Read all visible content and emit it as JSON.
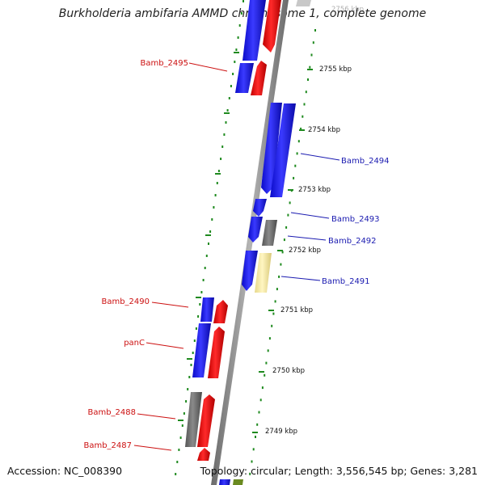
{
  "title": "Burkholderia ambifaria AMMD chromosome 1, complete genome",
  "footer": {
    "accession": "Accession: NC_008390",
    "summary": "Topology: circular; Length: 3,556,545 bp; Genes: 3,281"
  },
  "scale_labels": [
    {
      "text": "2756 kbp",
      "faded": true
    },
    {
      "text": "2755 kbp"
    },
    {
      "text": "2754 kbp"
    },
    {
      "text": "2753 kbp"
    },
    {
      "text": "2752 kbp"
    },
    {
      "text": "2751 kbp"
    },
    {
      "text": "2750 kbp"
    },
    {
      "text": "2749 kbp"
    }
  ],
  "gene_labels": [
    {
      "text": "Bamb_2495",
      "strand": "reverse"
    },
    {
      "text": "Bamb_2494",
      "strand": "forward"
    },
    {
      "text": "Bamb_2493",
      "strand": "forward"
    },
    {
      "text": "Bamb_2492",
      "strand": "forward"
    },
    {
      "text": "Bamb_2491",
      "strand": "forward"
    },
    {
      "text": "Bamb_2490",
      "strand": "reverse"
    },
    {
      "text": "panC",
      "strand": "reverse"
    },
    {
      "text": "Bamb_2488",
      "strand": "reverse"
    },
    {
      "text": "Bamb_2487",
      "strand": "reverse"
    }
  ],
  "colors": {
    "cds": "#1e1ef0",
    "gene_reverse": "#e81010",
    "label_forward": "#1a1ab0",
    "label_reverse": "#cc1010",
    "pseudo": "#6e6e6e",
    "trna": "#f2e6a0",
    "backbone": "#8c8c8c",
    "scale_ticks": "#1f8a1f"
  }
}
